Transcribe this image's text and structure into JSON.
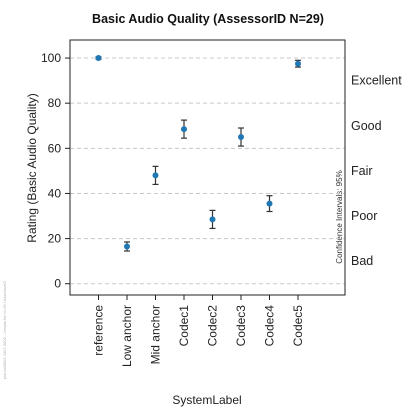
{
  "chart_data": {
    "type": "scatter",
    "title": "Basic Audio Quality (AssessorID N=29)",
    "xlabel": "SystemLabel",
    "ylabel": "Rating (Basic Audio Quality)",
    "categories": [
      "reference",
      "Low anchor",
      "Mid anchor",
      "Codec1",
      "Codec2",
      "Codec3",
      "Codec4",
      "Codec5"
    ],
    "series": [
      {
        "values": [
          100,
          16.5,
          48,
          68.5,
          28.5,
          65,
          35.5,
          97.5
        ],
        "ci_low": [
          99.5,
          14.5,
          44,
          64.5,
          24.5,
          61,
          32,
          96
        ],
        "ci_high": [
          100.5,
          18.5,
          52,
          72.5,
          32.5,
          69,
          39,
          99
        ]
      }
    ],
    "ylim": [
      -5,
      108
    ],
    "yticks": [
      0,
      20,
      40,
      60,
      80,
      100
    ],
    "grid": true,
    "quality_scale": [
      {
        "label": "Excellent",
        "value": 90
      },
      {
        "label": "Good",
        "value": 70
      },
      {
        "label": "Fair",
        "value": 50
      },
      {
        "label": "Poor",
        "value": 30
      },
      {
        "label": "Bad",
        "value": 10
      }
    ],
    "ci_note": "Confidence Intervals: 95%",
    "side_note": "plot id#8003 2007-0000 ...results for N=29 / AssessorID"
  },
  "colors": {
    "point": "#1f77b4",
    "errorbar": "#333333",
    "grid": "#c8c8c8",
    "axis": "#222222"
  }
}
